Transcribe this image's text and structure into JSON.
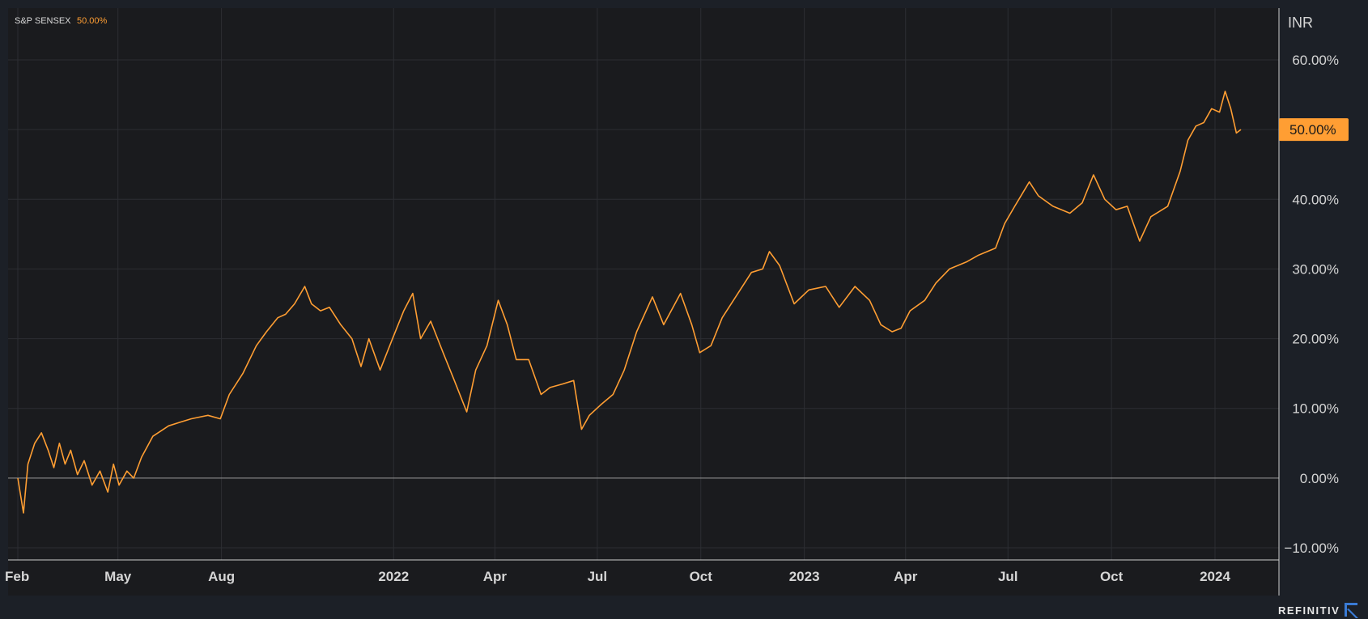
{
  "colors": {
    "background": "#1c2027",
    "plot_background": "#1a1b1e",
    "series": "#ff9e33",
    "grid": "#2c2e33",
    "zero_line": "#9a9a9a",
    "brand_accent": "#3a7bd5"
  },
  "legend": {
    "name": "S&P SENSEX",
    "value": "50.00%"
  },
  "currency": "INR",
  "last_value_badge": "50.00%",
  "brand": "REFINITIV",
  "brand_icon": "refinitiv-logo-icon",
  "chart_data": {
    "type": "line",
    "title": "",
    "xlabel": "",
    "ylabel": "",
    "ylim": [
      -12,
      68
    ],
    "y_ticks": [
      {
        "value": 60,
        "label": "60.00%"
      },
      {
        "value": 50,
        "label": "50.00%"
      },
      {
        "value": 40,
        "label": "40.00%"
      },
      {
        "value": 30,
        "label": "30.00%"
      },
      {
        "value": 20,
        "label": "20.00%"
      },
      {
        "value": 10,
        "label": "10.00%"
      },
      {
        "value": 0,
        "label": "0.00%"
      },
      {
        "value": -10,
        "label": "−10.00%"
      }
    ],
    "xlim": [
      "2021-02-01",
      "2024-02-25"
    ],
    "x_ticks": [
      {
        "date": "2021-02-01",
        "label": "Feb"
      },
      {
        "date": "2021-05-01",
        "label": "May"
      },
      {
        "date": "2021-08-01",
        "label": "Aug"
      },
      {
        "date": "2022-01-01",
        "label": "2022"
      },
      {
        "date": "2022-04-01",
        "label": "Apr"
      },
      {
        "date": "2022-07-01",
        "label": "Jul"
      },
      {
        "date": "2022-10-01",
        "label": "Oct"
      },
      {
        "date": "2023-01-01",
        "label": "2023"
      },
      {
        "date": "2023-04-01",
        "label": "Apr"
      },
      {
        "date": "2023-07-01",
        "label": "Jul"
      },
      {
        "date": "2023-10-01",
        "label": "Oct"
      },
      {
        "date": "2024-01-01",
        "label": "2024"
      }
    ],
    "grid": true,
    "legend_position": "top-left",
    "series": [
      {
        "name": "S&P SENSEX",
        "color": "#ff9e33",
        "points": [
          [
            "2021-02-01",
            0
          ],
          [
            "2021-02-06",
            -5
          ],
          [
            "2021-02-10",
            2
          ],
          [
            "2021-02-16",
            5
          ],
          [
            "2021-02-22",
            6.5
          ],
          [
            "2021-02-28",
            4
          ],
          [
            "2021-03-05",
            1.5
          ],
          [
            "2021-03-10",
            5
          ],
          [
            "2021-03-15",
            2
          ],
          [
            "2021-03-20",
            4
          ],
          [
            "2021-03-26",
            0.5
          ],
          [
            "2021-04-01",
            2.5
          ],
          [
            "2021-04-08",
            -1
          ],
          [
            "2021-04-15",
            1
          ],
          [
            "2021-04-22",
            -2
          ],
          [
            "2021-04-27",
            2
          ],
          [
            "2021-05-02",
            -1
          ],
          [
            "2021-05-09",
            1
          ],
          [
            "2021-05-15",
            0
          ],
          [
            "2021-05-22",
            3
          ],
          [
            "2021-06-01",
            6
          ],
          [
            "2021-06-15",
            7.5
          ],
          [
            "2021-06-25",
            8
          ],
          [
            "2021-07-05",
            8.5
          ],
          [
            "2021-07-20",
            9
          ],
          [
            "2021-07-31",
            8.5
          ],
          [
            "2021-08-08",
            12
          ],
          [
            "2021-08-20",
            15
          ],
          [
            "2021-09-01",
            19
          ],
          [
            "2021-09-10",
            21
          ],
          [
            "2021-09-20",
            23
          ],
          [
            "2021-09-27",
            23.5
          ],
          [
            "2021-10-05",
            25
          ],
          [
            "2021-10-14",
            27.5
          ],
          [
            "2021-10-20",
            25
          ],
          [
            "2021-10-28",
            24
          ],
          [
            "2021-11-05",
            24.5
          ],
          [
            "2021-11-15",
            22
          ],
          [
            "2021-11-25",
            20
          ],
          [
            "2021-12-03",
            16
          ],
          [
            "2021-12-10",
            20
          ],
          [
            "2021-12-20",
            15.5
          ],
          [
            "2021-12-31",
            20
          ],
          [
            "2022-01-10",
            24
          ],
          [
            "2022-01-18",
            26.5
          ],
          [
            "2022-01-25",
            20
          ],
          [
            "2022-02-03",
            22.5
          ],
          [
            "2022-02-14",
            18
          ],
          [
            "2022-02-24",
            14
          ],
          [
            "2022-03-07",
            9.5
          ],
          [
            "2022-03-15",
            15.5
          ],
          [
            "2022-03-25",
            19
          ],
          [
            "2022-04-04",
            25.5
          ],
          [
            "2022-04-12",
            22
          ],
          [
            "2022-04-20",
            17
          ],
          [
            "2022-05-01",
            17
          ],
          [
            "2022-05-12",
            12
          ],
          [
            "2022-05-20",
            13
          ],
          [
            "2022-05-31",
            13.5
          ],
          [
            "2022-06-10",
            14
          ],
          [
            "2022-06-17",
            7
          ],
          [
            "2022-06-24",
            9
          ],
          [
            "2022-07-04",
            10.5
          ],
          [
            "2022-07-15",
            12
          ],
          [
            "2022-07-25",
            15.5
          ],
          [
            "2022-08-05",
            21
          ],
          [
            "2022-08-19",
            26
          ],
          [
            "2022-08-29",
            22
          ],
          [
            "2022-09-13",
            26.5
          ],
          [
            "2022-09-23",
            22
          ],
          [
            "2022-09-30",
            18
          ],
          [
            "2022-10-10",
            19
          ],
          [
            "2022-10-20",
            23
          ],
          [
            "2022-11-01",
            26
          ],
          [
            "2022-11-15",
            29.5
          ],
          [
            "2022-11-25",
            30
          ],
          [
            "2022-12-01",
            32.5
          ],
          [
            "2022-12-10",
            30.5
          ],
          [
            "2022-12-23",
            25
          ],
          [
            "2023-01-05",
            27
          ],
          [
            "2023-01-20",
            27.5
          ],
          [
            "2023-02-01",
            24.5
          ],
          [
            "2023-02-15",
            27.5
          ],
          [
            "2023-02-28",
            25.5
          ],
          [
            "2023-03-10",
            22
          ],
          [
            "2023-03-20",
            21
          ],
          [
            "2023-03-28",
            21.5
          ],
          [
            "2023-04-05",
            24
          ],
          [
            "2023-04-18",
            25.5
          ],
          [
            "2023-04-28",
            28
          ],
          [
            "2023-05-10",
            30
          ],
          [
            "2023-05-25",
            31
          ],
          [
            "2023-06-05",
            32
          ],
          [
            "2023-06-20",
            33
          ],
          [
            "2023-06-28",
            36.5
          ],
          [
            "2023-07-07",
            39
          ],
          [
            "2023-07-20",
            42.5
          ],
          [
            "2023-07-28",
            40.5
          ],
          [
            "2023-08-10",
            39
          ],
          [
            "2023-08-25",
            38
          ],
          [
            "2023-09-05",
            39.5
          ],
          [
            "2023-09-15",
            43.5
          ],
          [
            "2023-09-25",
            40
          ],
          [
            "2023-10-05",
            38.5
          ],
          [
            "2023-10-15",
            39
          ],
          [
            "2023-10-26",
            34
          ],
          [
            "2023-11-05",
            37.5
          ],
          [
            "2023-11-20",
            39
          ],
          [
            "2023-12-01",
            44
          ],
          [
            "2023-12-08",
            48.5
          ],
          [
            "2023-12-15",
            50.5
          ],
          [
            "2023-12-22",
            51
          ],
          [
            "2023-12-29",
            53
          ],
          [
            "2024-01-05",
            52.5
          ],
          [
            "2024-01-10",
            55.5
          ],
          [
            "2024-01-15",
            53
          ],
          [
            "2024-01-20",
            49.5
          ],
          [
            "2024-01-24",
            50
          ]
        ]
      }
    ]
  }
}
